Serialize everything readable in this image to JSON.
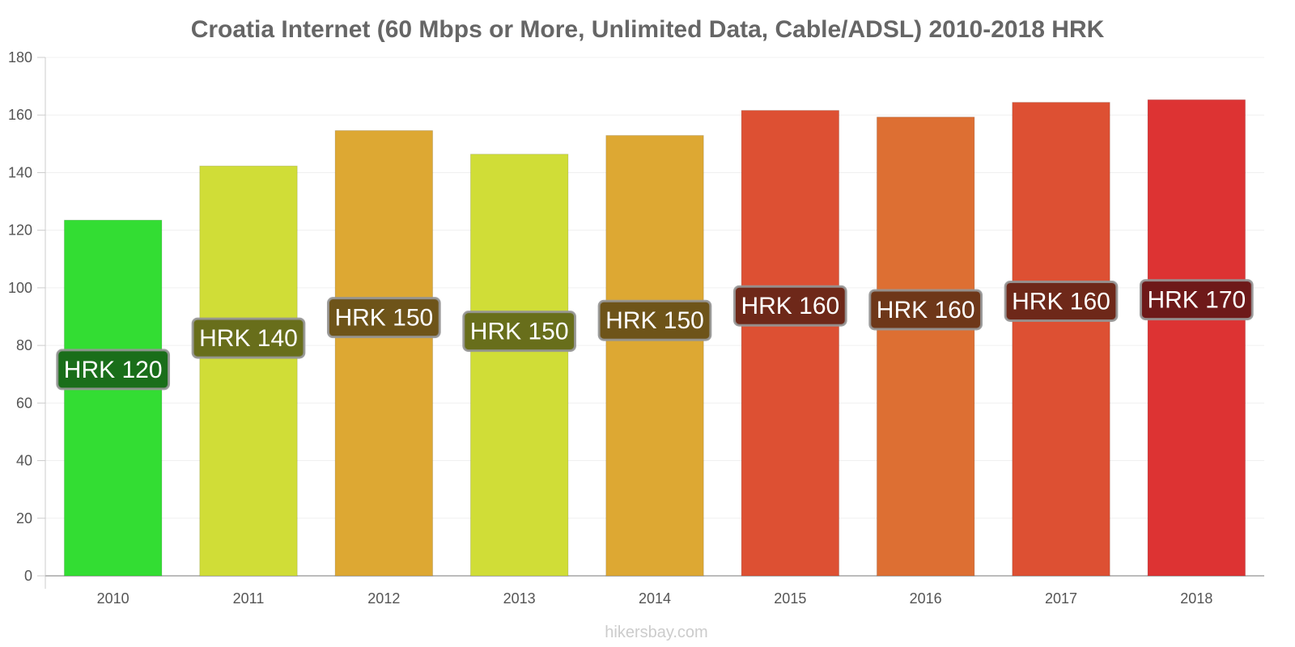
{
  "chart_data": {
    "type": "bar",
    "title": "Croatia Internet (60 Mbps or More, Unlimited Data, Cable/ADSL) 2010-2018 HRK",
    "xlabel": "",
    "ylabel": "",
    "categories": [
      "2010",
      "2011",
      "2012",
      "2013",
      "2014",
      "2015",
      "2016",
      "2017",
      "2018"
    ],
    "values": [
      123.5,
      142.3,
      154.6,
      146.4,
      152.9,
      161.6,
      159.3,
      164.4,
      165.3
    ],
    "data_labels": [
      "HRK 120",
      "HRK 140",
      "HRK 150",
      "HRK 150",
      "HRK 150",
      "HRK 160",
      "HRK 160",
      "HRK 160",
      "HRK 170"
    ],
    "bar_colors": [
      "#33dd33",
      "#d0dd37",
      "#dda833",
      "#d0dd37",
      "#dda833",
      "#dd5033",
      "#dd6f33",
      "#dd5033",
      "#dd3333"
    ],
    "label_box_colors": [
      "#1a6e1a",
      "#686e1b",
      "#6e5419",
      "#686e1b",
      "#6e5419",
      "#6e2819",
      "#6e3719",
      "#6e2819",
      "#6e1919"
    ],
    "ylim": [
      0,
      180
    ],
    "yticks": [
      0,
      20,
      40,
      60,
      80,
      100,
      120,
      140,
      160,
      180
    ],
    "grid": true,
    "legend": "none"
  },
  "watermark": "hikersbay.com"
}
